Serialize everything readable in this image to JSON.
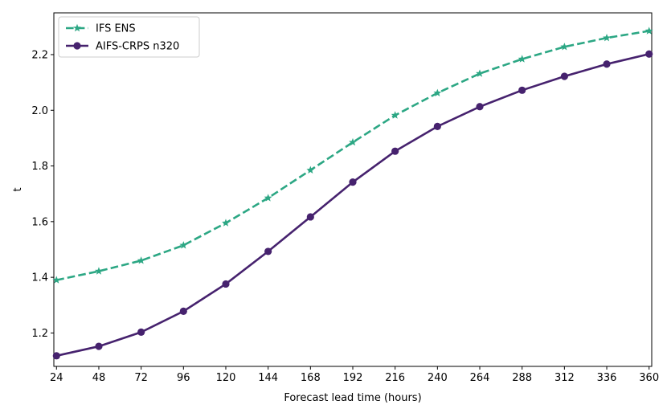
{
  "chart_data": {
    "type": "line",
    "title": "",
    "xlabel": "Forecast lead time (hours)",
    "ylabel": "t",
    "x": [
      24,
      48,
      72,
      96,
      120,
      144,
      168,
      192,
      216,
      240,
      264,
      288,
      312,
      336,
      360
    ],
    "xticks": [
      "24",
      "48",
      "72",
      "96",
      "120",
      "144",
      "168",
      "192",
      "216",
      "240",
      "264",
      "288",
      "312",
      "336",
      "360"
    ],
    "yticks": [
      "1.2",
      "1.4",
      "1.6",
      "1.8",
      "2.0",
      "2.2"
    ],
    "xlim": [
      22.5,
      361.5
    ],
    "ylim": [
      1.08,
      2.35
    ],
    "grid": false,
    "legend_position": "upper-left",
    "series": [
      {
        "name": "IFS ENS",
        "color": "#2ca784",
        "line_style": "dashed",
        "marker": "star",
        "values": [
          1.39,
          1.422,
          1.46,
          1.515,
          1.595,
          1.685,
          1.785,
          1.885,
          1.982,
          2.062,
          2.132,
          2.184,
          2.228,
          2.26,
          2.285
        ]
      },
      {
        "name": "AIFS-CRPS n320",
        "color": "#46226e",
        "line_style": "solid",
        "marker": "circle",
        "values": [
          1.118,
          1.152,
          1.203,
          1.278,
          1.376,
          1.493,
          1.617,
          1.742,
          1.853,
          1.942,
          2.013,
          2.072,
          2.122,
          2.166,
          2.202
        ]
      }
    ]
  }
}
